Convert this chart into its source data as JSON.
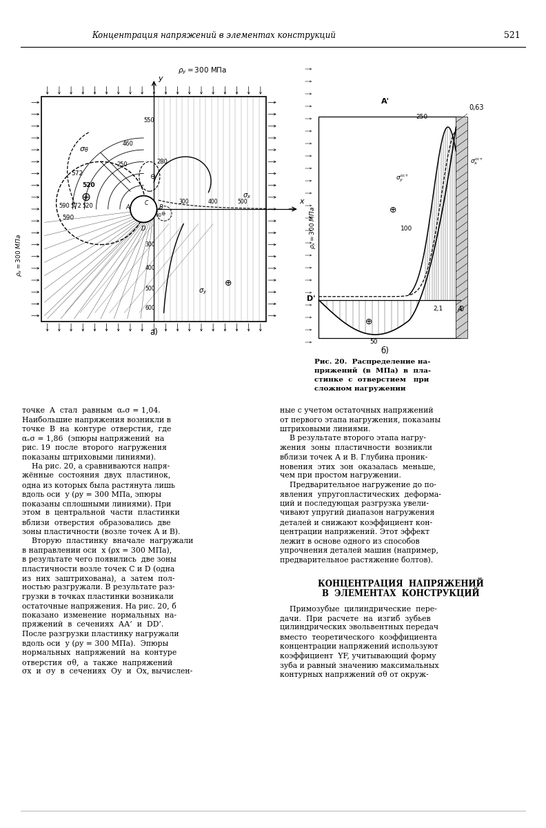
{
  "page_title": "Концентрация напряжений в элементах конструкций",
  "page_number": "521",
  "left_col_text": [
    "точке  A  стал  равным  αₑσ = 1,04.",
    "Наибольшие напряжения возникли в",
    "точке  B  на  контуре  отверстия,  где",
    "αₑσ = 1,86  (эпюры напряжений  на",
    "рис. 19  после  второго  нагружения",
    "показаны штриховыми линиями).",
    "    На рис. 20, а сравниваются напря-",
    "жённые  состояния  двух  пластинок,",
    "одна из которых была растянута лишь",
    "вдоль оси  y (ρy = 300 МПа, эпюры",
    "показаны сплошными линиями). При",
    "этом  в  центральной  части  пластинки",
    "вблизи  отверстия  образовались  две",
    "зоны пластичности (возле точек А и В).",
    "    Вторую  пластинку  вначале  нагружали",
    "в направлении оси  х (ρx = 300 МПа),",
    "в результате чего появились  две зоны",
    "пластичности возле точек С и D (одна",
    "из  них  заштрихована),  а  затем  пол-",
    "ностью разгружали. В результате раз-",
    "грузки в точках пластинки возникали",
    "остаточные напряжения. На рис. 20, б",
    "показано  изменение  нормальных  на-",
    "пряжений  в  сечениях  АА’  и  DD’.",
    "После разгрузки пластинку нагружали",
    "вдоль оси  у (ρy = 300 МПа).  Эпюры",
    "нормальных  напряжений  на  контуре",
    "отверстия  σθ,  а  также  напряжений",
    "σх  и  σу  в  сечениях  Оу  и  Ох, вычислен-"
  ],
  "right_col_text": [
    "ные с учетом остаточных напряжений",
    "от первого этапа нагружения, показаны",
    "штриховыми линиями.",
    "    В результате второго этапа нагру-",
    "жения  зоны  пластичности  возникли",
    "вблизи точек А и В. Глубина проник-",
    "новения  этих  зон  оказалась  меньше,",
    "чем при простом нагружении.",
    "    Предварительное нагружение до по-",
    "явления  упругопластических  деформа-",
    "ций и последующая разгрузка увели-",
    "чивают упругий диапазон нагружения",
    "деталей и снижают коэффициент кон-",
    "центрации напряжений. Этот эффект",
    "лежит в основе одного из способов",
    "упрочнения деталей машин (например,",
    "предварительное растяжение болтов)."
  ],
  "section_heading_lines": [
    "КОНЦЕНТРАЦИЯ  НАПРЯЖЕНИЙ",
    "В  ЭЛЕМЕНТАХ  КОНСТРУКЦИЙ"
  ],
  "section_body_text": [
    "    Примозубые  цилиндрические  пере-",
    "дачи.  При  расчете  на  изгиб  зубьев",
    "цилиндрических эвольвентных передач",
    "вместо  теоретического  коэффициента",
    "концентрации напряжений используют",
    "коэффициент  YF, учитывающий форму",
    "зуба и равный значению максимальных",
    "контурных напряжений σθ от окруж-"
  ]
}
